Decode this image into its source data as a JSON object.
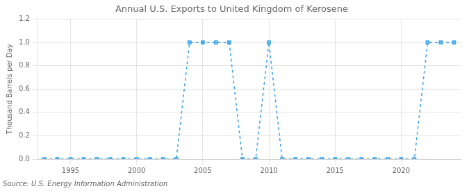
{
  "chart_data": {
    "type": "line",
    "title": "Annual U.S. Exports to United Kingdom of Kerosene",
    "ylabel": "Thousand Barrels per Day",
    "source": "Source: U.S. Energy Information Administration",
    "x": [
      1993,
      1994,
      1995,
      1996,
      1997,
      1998,
      1999,
      2000,
      2001,
      2002,
      2003,
      2004,
      2005,
      2006,
      2007,
      2008,
      2009,
      2010,
      2011,
      2012,
      2013,
      2014,
      2015,
      2016,
      2017,
      2018,
      2019,
      2020,
      2021,
      2022,
      2023,
      2024
    ],
    "values": [
      0,
      0,
      0,
      0,
      0,
      0,
      0,
      0,
      0,
      0,
      0,
      1,
      1,
      1,
      1,
      0,
      0,
      1,
      0,
      0,
      0,
      0,
      0,
      0,
      0,
      0,
      0,
      0,
      0,
      1,
      1,
      1
    ],
    "xlim": [
      1992.5,
      2024.5
    ],
    "ylim": [
      0,
      1.2
    ],
    "xticks": [
      1995,
      2000,
      2005,
      2010,
      2015,
      2020
    ],
    "yticks": [
      {
        "value": 0.0,
        "label": "0.0"
      },
      0.2,
      0.4,
      0.6,
      0.8,
      {
        "value": 1.0,
        "label": "1.0"
      },
      1.2
    ],
    "grid": true,
    "marker": "square",
    "line_style": "dashed"
  }
}
